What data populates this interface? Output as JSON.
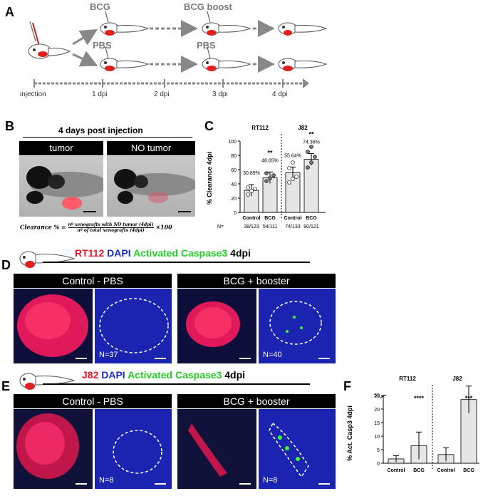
{
  "panelA": {
    "letter": "A",
    "labels": {
      "bcg": "BCG",
      "bcg_boost": "BCG boost",
      "pbs1": "PBS",
      "pbs2": "PBS"
    },
    "timeline": [
      "injection",
      "1 dpi",
      "2 dpi",
      "3 dpi",
      "4 dpi"
    ]
  },
  "panelB": {
    "letter": "B",
    "title": "4 days post injection",
    "tumor_label": "tumor",
    "no_tumor_label": "NO tumor",
    "formula_lhs": "Clearance % =",
    "formula_num": "nº xenografts with NO tumor (4dpi)",
    "formula_den": "nº of total xenografts (4dpi)",
    "formula_mult": "×100"
  },
  "panelC": {
    "letter": "C",
    "group_rt112": "RT112",
    "group_j82": "J82",
    "n_prefix": "N=",
    "n_values": [
      "38/123",
      "54/111",
      "74/133",
      "90/121"
    ],
    "chart_data": {
      "type": "bar",
      "ylabel": "% Clearance 4dpi",
      "categories": [
        "Control",
        "BCG",
        "Control",
        "BCG"
      ],
      "values": [
        30.89,
        48.65,
        55.64,
        74.38
      ],
      "value_labels": [
        "30.89%",
        "48.65%",
        "55.64%",
        "74.38%"
      ],
      "significance": [
        "",
        "**",
        "",
        "**"
      ],
      "ylim": [
        0,
        100
      ],
      "yticks": [
        "0",
        "20",
        "40",
        "60",
        "80",
        "100"
      ],
      "points": [
        [
          25,
          30,
          33,
          35
        ],
        [
          44,
          48,
          52,
          55
        ],
        [
          42,
          47,
          50,
          62,
          70
        ],
        [
          63,
          70,
          78,
          85,
          92
        ]
      ]
    }
  },
  "panelD": {
    "letter": "D",
    "title_parts": [
      "RT112",
      " DAPI",
      " Activated Caspase3",
      " 4dpi"
    ],
    "title_colors": [
      "#e8152a",
      "#1a2bd4",
      "#22d122",
      "#000000"
    ],
    "control_label": "Control - PBS",
    "bcg_label": "BCG + booster",
    "n_control": "N=37",
    "n_bcg": "N=40"
  },
  "panelE": {
    "letter": "E",
    "title_parts": [
      "J82",
      " DAPI",
      " Activated Caspase3",
      " 4dpi"
    ],
    "title_colors": [
      "#e8152a",
      "#1a2bd4",
      "#22d122",
      "#000000"
    ],
    "control_label": "Control - PBS",
    "bcg_label": "BCG + booster",
    "n_control": "N=8",
    "n_bcg": "N=8"
  },
  "panelF": {
    "letter": "F",
    "group_rt112": "RT112",
    "group_j82": "J82",
    "chart_data": {
      "type": "bar",
      "ylabel": "% Act. Casp3 4dpi",
      "categories": [
        "Control",
        "BCG",
        "Control",
        "BCG"
      ],
      "values": [
        1.6,
        6.5,
        3.2,
        23.5
      ],
      "sd": [
        1.2,
        5.0,
        2.5,
        5.0
      ],
      "significance": [
        "",
        "****",
        "",
        "***"
      ],
      "yticks": [
        "0",
        "5",
        "10",
        "15",
        "20",
        "25",
        "50"
      ],
      "ylim": [
        0,
        50
      ]
    }
  }
}
